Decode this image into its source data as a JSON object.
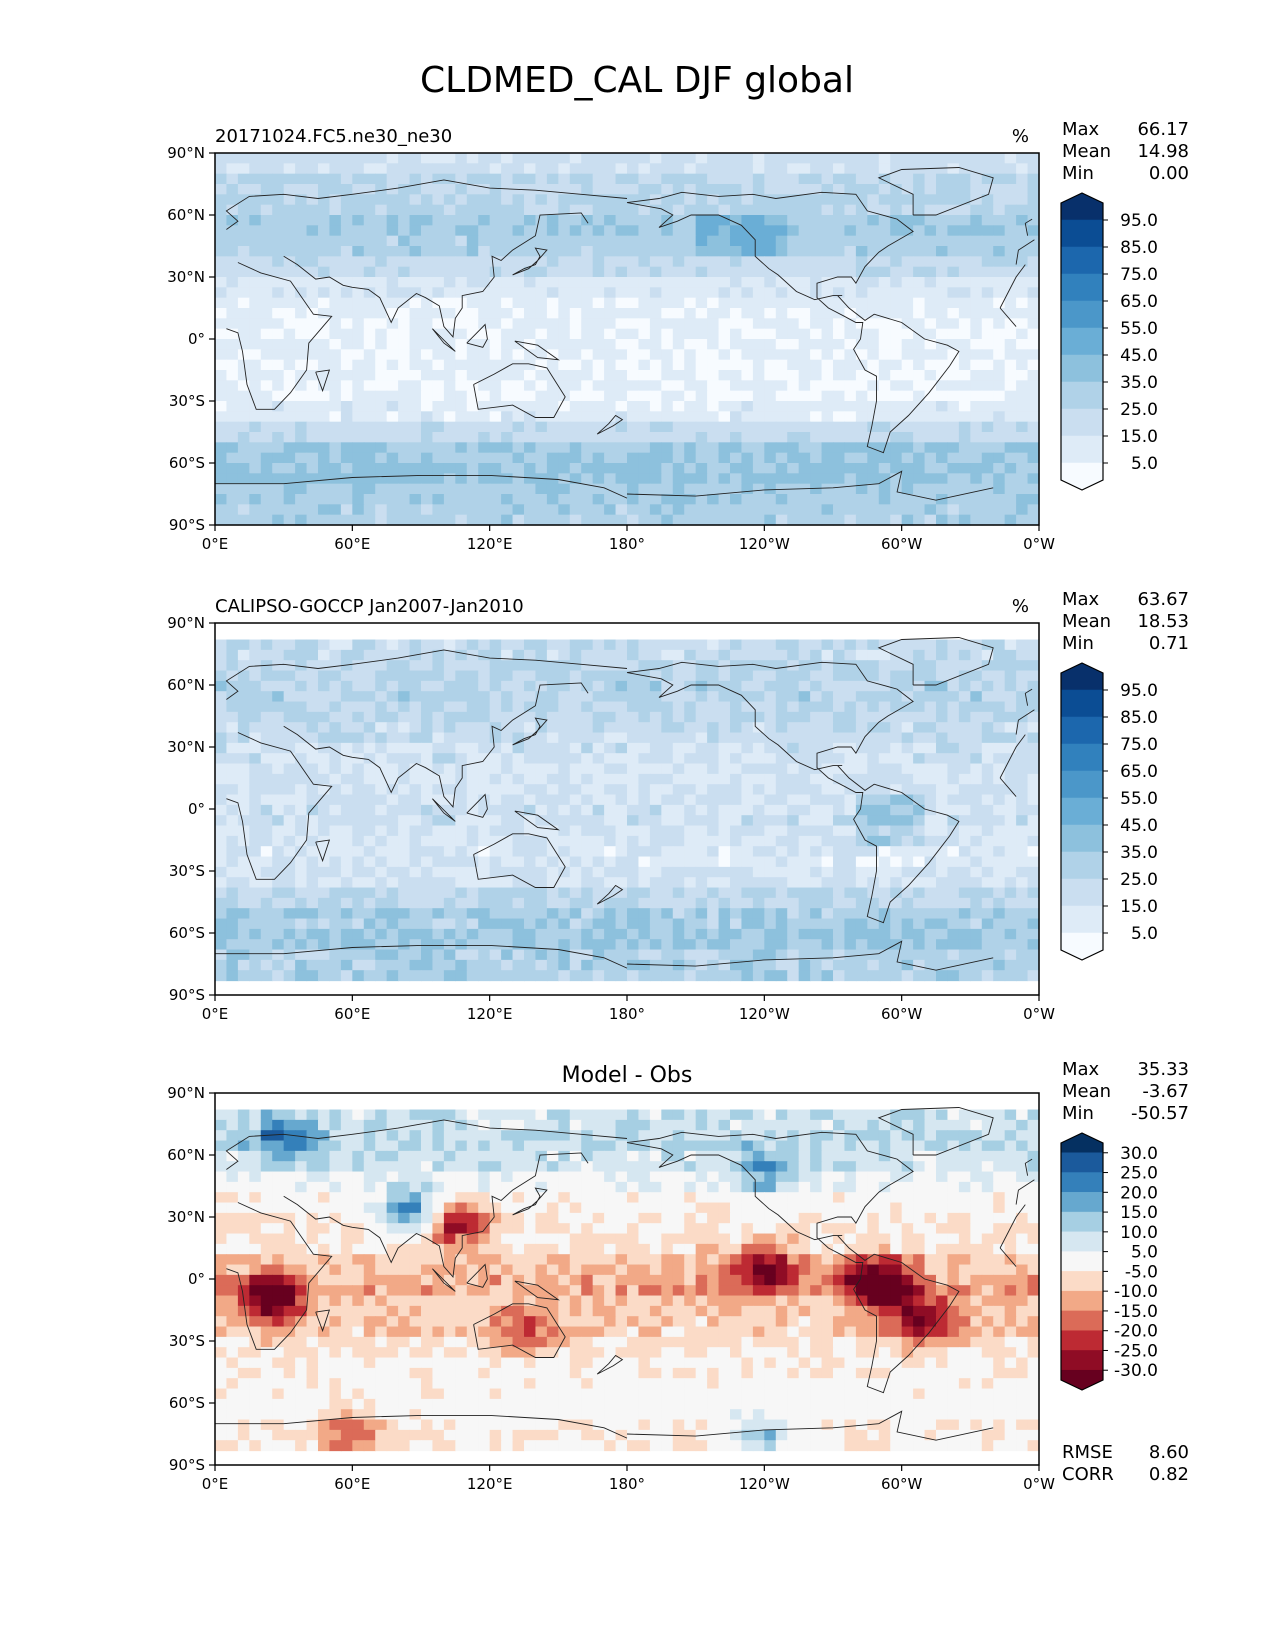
{
  "figure": {
    "title": "CLDMED_CAL DJF global"
  },
  "x_ticks": [
    "0°E",
    "60°E",
    "120°E",
    "180°",
    "120°W",
    "60°W",
    "0°W"
  ],
  "y_ticks": [
    "90°N",
    "60°N",
    "30°N",
    "0°",
    "30°S",
    "60°S",
    "90°S"
  ],
  "panels": [
    {
      "id": "model",
      "left_title": "20171024.FC5.ne30_ne30",
      "center_title": "",
      "units": "%",
      "stats": [
        {
          "label": "Max",
          "value": "66.17"
        },
        {
          "label": "Mean",
          "value": "14.98"
        },
        {
          "label": "Min",
          "value": "0.00"
        }
      ],
      "colorbar_labels": [
        "95.0",
        "85.0",
        "75.0",
        "65.0",
        "55.0",
        "45.0",
        "35.0",
        "25.0",
        "15.0",
        "5.0"
      ],
      "colormap": [
        "#08306b",
        "#0b4d94",
        "#1c67ad",
        "#3181bd",
        "#4b97c9",
        "#6aaed6",
        "#8dc1dd",
        "#b0d2e8",
        "#cadef0",
        "#deebf7",
        "#f7fbff"
      ]
    },
    {
      "id": "obs",
      "left_title": "CALIPSO-GOCCP Jan2007-Jan2010",
      "center_title": "",
      "units": "%",
      "stats": [
        {
          "label": "Max",
          "value": "63.67"
        },
        {
          "label": "Mean",
          "value": "18.53"
        },
        {
          "label": "Min",
          "value": "0.71"
        }
      ],
      "colorbar_labels": [
        "95.0",
        "85.0",
        "75.0",
        "65.0",
        "55.0",
        "45.0",
        "35.0",
        "25.0",
        "15.0",
        "5.0"
      ],
      "colormap": [
        "#08306b",
        "#0b4d94",
        "#1c67ad",
        "#3181bd",
        "#4b97c9",
        "#6aaed6",
        "#8dc1dd",
        "#b0d2e8",
        "#cadef0",
        "#deebf7",
        "#f7fbff"
      ]
    },
    {
      "id": "diff",
      "left_title": "",
      "center_title": "Model - Obs",
      "units": "",
      "stats": [
        {
          "label": "Max",
          "value": "35.33"
        },
        {
          "label": "Mean",
          "value": "-3.67"
        },
        {
          "label": "Min",
          "value": "-50.57"
        }
      ],
      "colorbar_labels": [
        "30.0",
        "25.0",
        "20.0",
        "15.0",
        "10.0",
        "5.0",
        "-5.0",
        "-10.0",
        "-15.0",
        "-20.0",
        "-25.0",
        "-30.0"
      ],
      "colormap": [
        "#053061",
        "#1b5a9c",
        "#3480ba",
        "#66a8cf",
        "#a6cfe3",
        "#d6e7f1",
        "#f7f7f7",
        "#fbdbc7",
        "#f2a987",
        "#db6b58",
        "#bd2a33",
        "#8f0c25",
        "#67001f"
      ],
      "extra_stats": [
        {
          "label": "RMSE",
          "value": "8.60"
        },
        {
          "label": "CORR",
          "value": "0.82"
        }
      ]
    }
  ],
  "chart_data": [
    {
      "type": "heatmap",
      "title": "20171024.FC5.ne30_ne30",
      "units": "%",
      "xlim": [
        0,
        360
      ],
      "ylim": [
        -90,
        90
      ],
      "x_ticks": [
        "0°E",
        "60°E",
        "120°E",
        "180°",
        "120°W",
        "60°W",
        "0°W"
      ],
      "y_ticks": [
        "90°N",
        "60°N",
        "30°N",
        "0°",
        "30°S",
        "60°S",
        "90°S"
      ],
      "levels": [
        5,
        15,
        25,
        35,
        45,
        55,
        65,
        75,
        85,
        95
      ],
      "stats": {
        "max": 66.17,
        "mean": 14.98,
        "min": 0.0
      },
      "zonal_profile": [
        {
          "lat": 85,
          "value": 18
        },
        {
          "lat": 75,
          "value": 25
        },
        {
          "lat": 65,
          "value": 28
        },
        {
          "lat": 55,
          "value": 33
        },
        {
          "lat": 45,
          "value": 30
        },
        {
          "lat": 35,
          "value": 22
        },
        {
          "lat": 25,
          "value": 12
        },
        {
          "lat": 15,
          "value": 8
        },
        {
          "lat": 5,
          "value": 6
        },
        {
          "lat": -5,
          "value": 7
        },
        {
          "lat": -15,
          "value": 6
        },
        {
          "lat": -25,
          "value": 5
        },
        {
          "lat": -35,
          "value": 10
        },
        {
          "lat": -45,
          "value": 22
        },
        {
          "lat": -55,
          "value": 35
        },
        {
          "lat": -65,
          "value": 38
        },
        {
          "lat": -75,
          "value": 32
        },
        {
          "lat": -85,
          "value": 30
        }
      ]
    },
    {
      "type": "heatmap",
      "title": "CALIPSO-GOCCP Jan2007-Jan2010",
      "units": "%",
      "xlim": [
        0,
        360
      ],
      "ylim": [
        -82,
        82
      ],
      "x_ticks": [
        "0°E",
        "60°E",
        "120°E",
        "180°",
        "120°W",
        "60°W",
        "0°W"
      ],
      "y_ticks": [
        "90°N",
        "60°N",
        "30°N",
        "0°",
        "30°S",
        "60°S",
        "90°S"
      ],
      "levels": [
        5,
        15,
        25,
        35,
        45,
        55,
        65,
        75,
        85,
        95
      ],
      "stats": {
        "max": 63.67,
        "mean": 18.53,
        "min": 0.71
      },
      "zonal_profile": [
        {
          "lat": 75,
          "value": 22
        },
        {
          "lat": 65,
          "value": 25
        },
        {
          "lat": 55,
          "value": 28
        },
        {
          "lat": 45,
          "value": 26
        },
        {
          "lat": 35,
          "value": 22
        },
        {
          "lat": 25,
          "value": 17
        },
        {
          "lat": 15,
          "value": 14
        },
        {
          "lat": 5,
          "value": 16
        },
        {
          "lat": -5,
          "value": 18
        },
        {
          "lat": -15,
          "value": 14
        },
        {
          "lat": -25,
          "value": 13
        },
        {
          "lat": -35,
          "value": 16
        },
        {
          "lat": -45,
          "value": 24
        },
        {
          "lat": -55,
          "value": 32
        },
        {
          "lat": -65,
          "value": 35
        },
        {
          "lat": -75,
          "value": 30
        }
      ]
    },
    {
      "type": "heatmap",
      "title": "Model - Obs",
      "units": "",
      "xlim": [
        0,
        360
      ],
      "ylim": [
        -82,
        82
      ],
      "x_ticks": [
        "0°E",
        "60°E",
        "120°E",
        "180°",
        "120°W",
        "60°W",
        "0°W"
      ],
      "y_ticks": [
        "90°N",
        "60°N",
        "30°N",
        "0°",
        "30°S",
        "60°S",
        "90°S"
      ],
      "levels": [
        -30,
        -25,
        -20,
        -15,
        -10,
        -5,
        5,
        10,
        15,
        20,
        25,
        30
      ],
      "stats": {
        "max": 35.33,
        "mean": -3.67,
        "min": -50.57,
        "rmse": 8.6,
        "corr": 0.82
      },
      "zonal_profile": [
        {
          "lat": 75,
          "value": 8
        },
        {
          "lat": 65,
          "value": 10
        },
        {
          "lat": 55,
          "value": 8
        },
        {
          "lat": 45,
          "value": 4
        },
        {
          "lat": 35,
          "value": -2
        },
        {
          "lat": 25,
          "value": -5
        },
        {
          "lat": 15,
          "value": -6
        },
        {
          "lat": 5,
          "value": -10
        },
        {
          "lat": -5,
          "value": -12
        },
        {
          "lat": -15,
          "value": -9
        },
        {
          "lat": -25,
          "value": -8
        },
        {
          "lat": -35,
          "value": -6
        },
        {
          "lat": -45,
          "value": -3
        },
        {
          "lat": -55,
          "value": -2
        },
        {
          "lat": -65,
          "value": -1
        },
        {
          "lat": -75,
          "value": -4
        }
      ],
      "features": [
        {
          "lon": 25,
          "lat": -10,
          "value": -30
        },
        {
          "lon": 85,
          "lat": 32,
          "value": 30
        },
        {
          "lon": 105,
          "lat": 28,
          "value": -25
        },
        {
          "lon": 290,
          "lat": -3,
          "value": -35
        },
        {
          "lon": 310,
          "lat": -20,
          "value": -22
        },
        {
          "lon": 240,
          "lat": 5,
          "value": -20
        },
        {
          "lon": 135,
          "lat": -25,
          "value": -12
        },
        {
          "lon": 240,
          "lat": 50,
          "value": 12
        },
        {
          "lon": 30,
          "lat": 70,
          "value": 15
        },
        {
          "lon": 60,
          "lat": -75,
          "value": -15
        },
        {
          "lon": 240,
          "lat": -75,
          "value": 18
        }
      ]
    }
  ]
}
